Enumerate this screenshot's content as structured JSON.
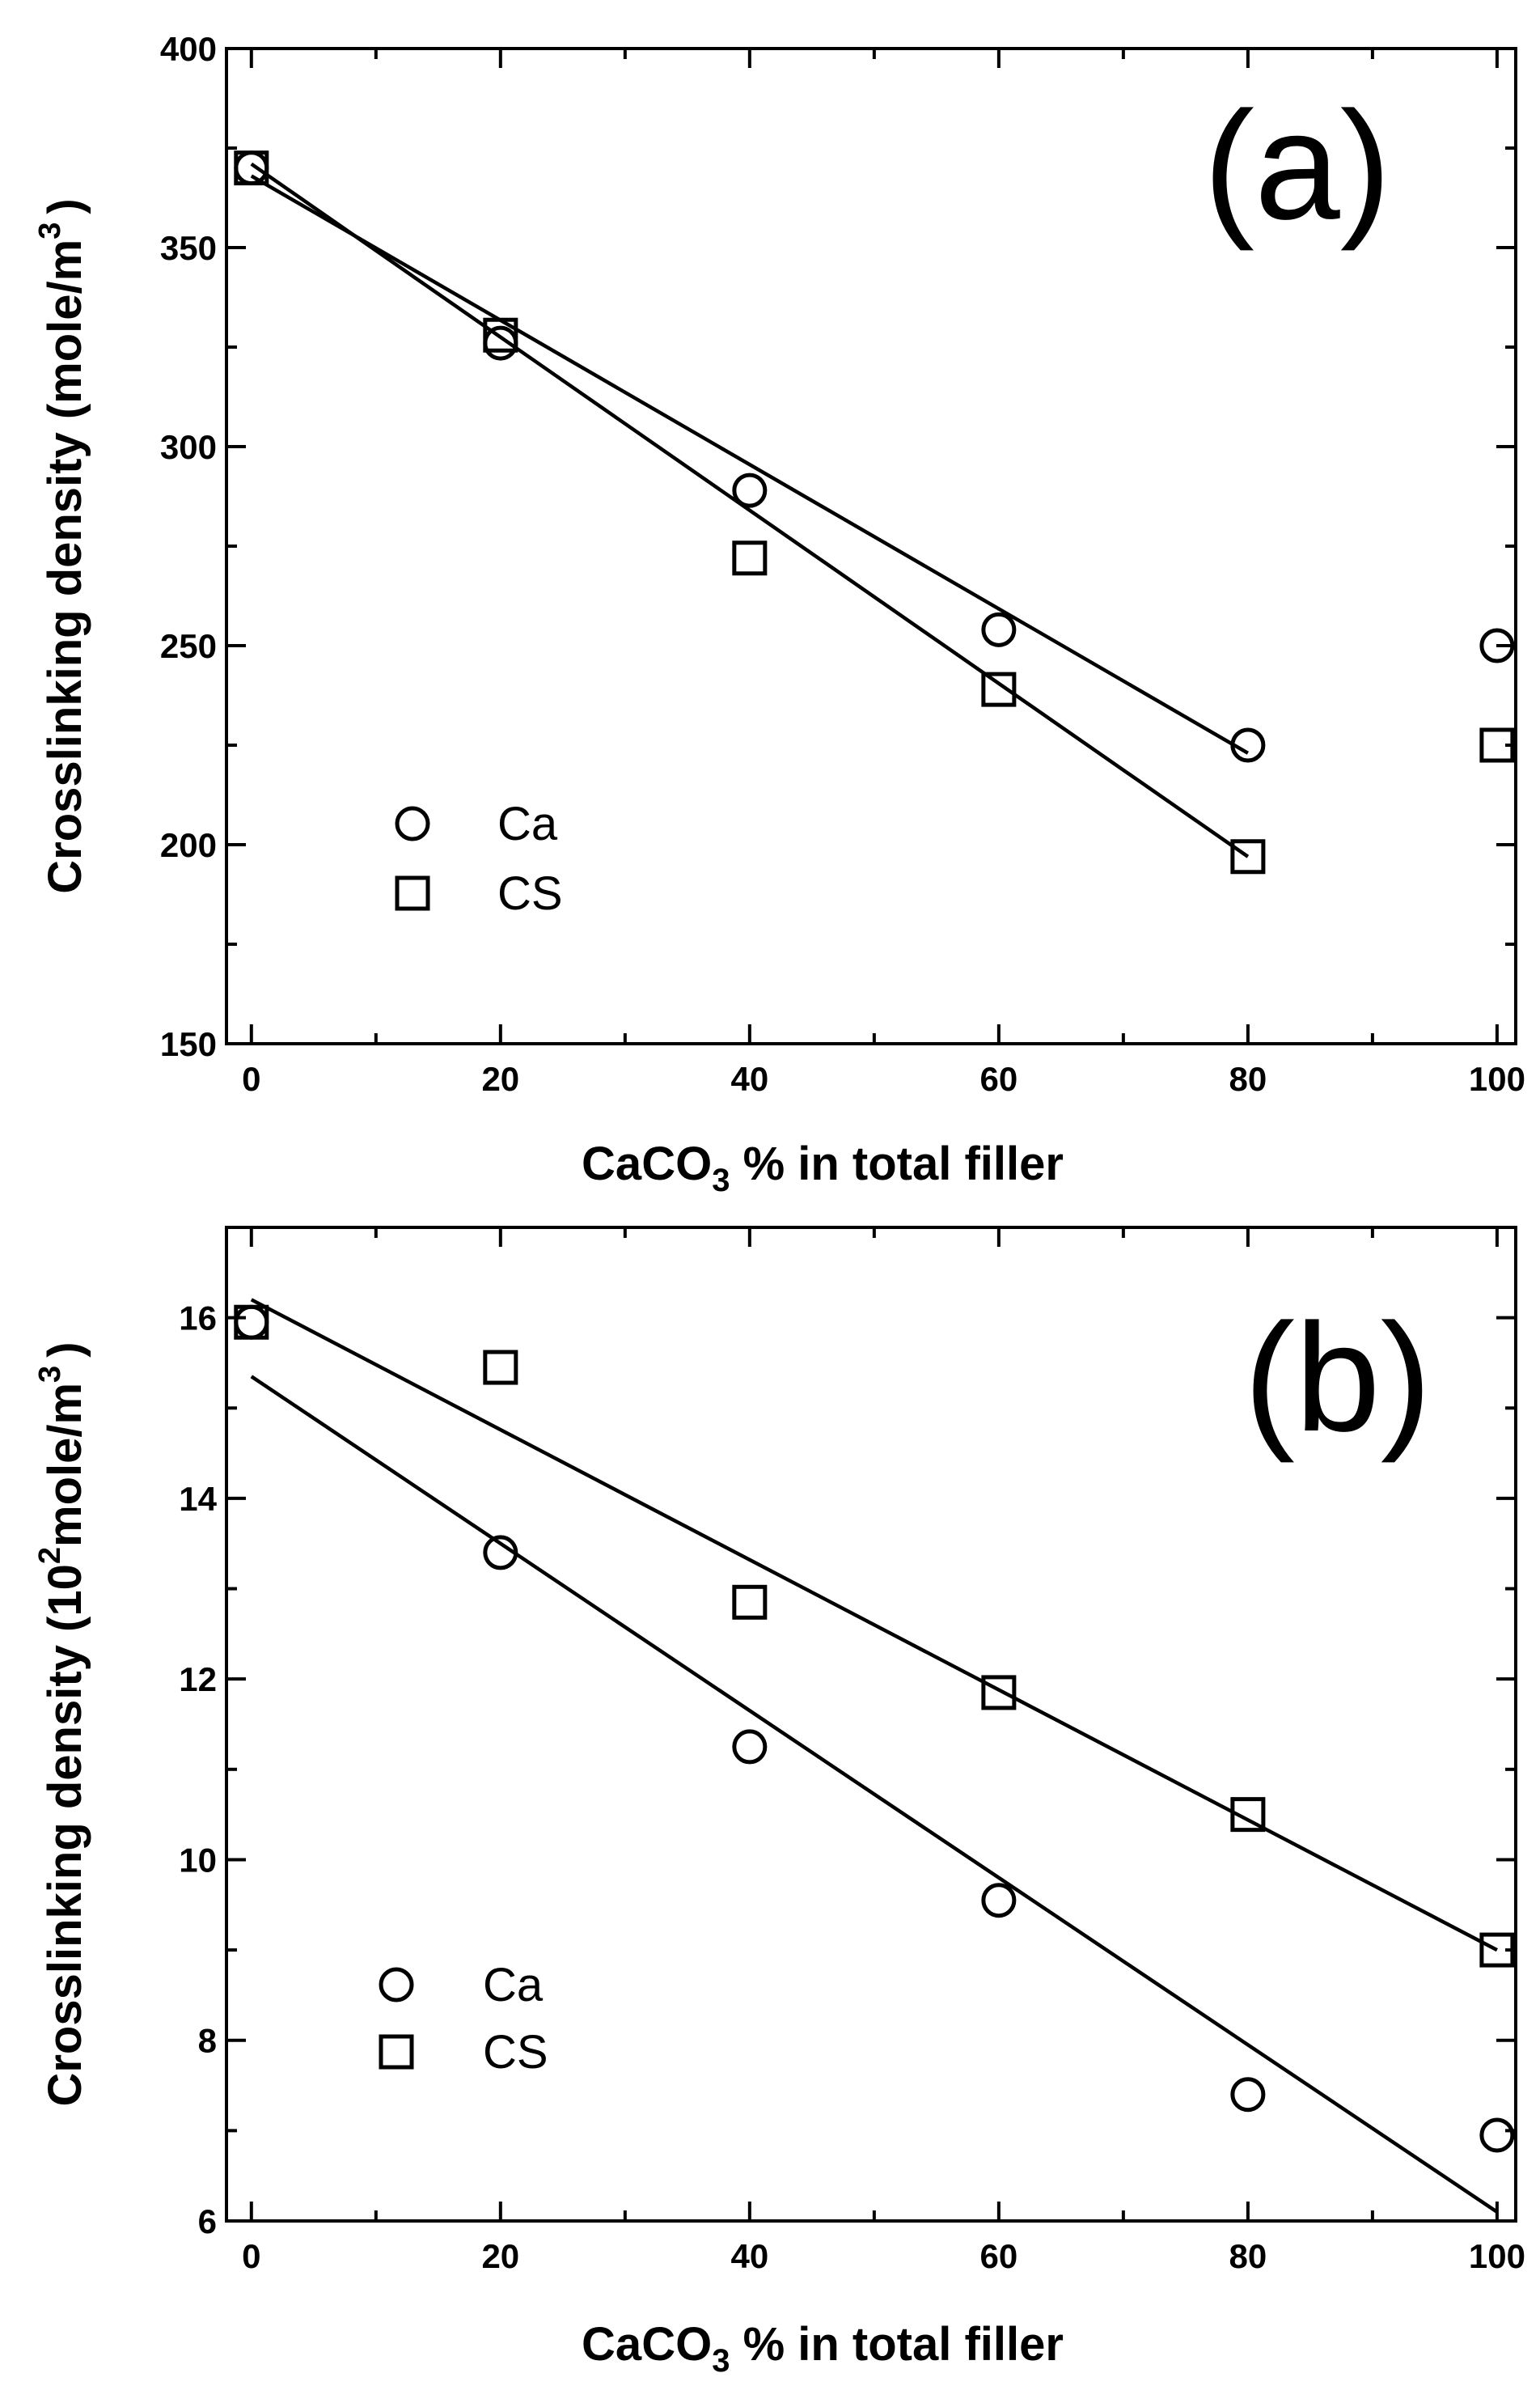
{
  "chart_data": [
    {
      "type": "scatter",
      "panel": "(a)",
      "xlabel": {
        "prefix": "CaCO",
        "subscript": "3",
        "suffix": " % in total filler"
      },
      "ylabel": {
        "main": "Crosslinking density (mole/m",
        "superscript": "3",
        "close": ")"
      },
      "xlim": [
        -2,
        101.5
      ],
      "ylim": [
        150,
        400
      ],
      "x_ticks": [
        0,
        20,
        40,
        60,
        80,
        100
      ],
      "y_ticks": [
        150,
        200,
        250,
        300,
        350,
        400
      ],
      "legend_position": "lower-left",
      "series": [
        {
          "name": "Ca",
          "marker": "circle",
          "x": [
            0,
            20,
            40,
            60,
            80,
            100
          ],
          "y": [
            370,
            326,
            289,
            254,
            225,
            250
          ],
          "fit": {
            "x": [
              0,
              80
            ],
            "y": [
              368,
              223
            ]
          }
        },
        {
          "name": "CS",
          "marker": "square",
          "x": [
            0,
            20,
            40,
            60,
            80,
            100
          ],
          "y": [
            370,
            328,
            272,
            239,
            197,
            225
          ],
          "fit": {
            "x": [
              0,
              80
            ],
            "y": [
              371,
              197
            ]
          }
        }
      ]
    },
    {
      "type": "scatter",
      "panel": "(b)",
      "xlabel": {
        "prefix": "CaCO",
        "subscript": "3",
        "suffix": " % in total filler"
      },
      "ylabel": {
        "main": "Crosslinking density (10",
        "superscript": "2",
        "after": "mole/m",
        "superscript2": "3",
        "close": ")"
      },
      "xlim": [
        -2,
        101.5
      ],
      "ylim": [
        6,
        17
      ],
      "x_ticks": [
        0,
        20,
        40,
        60,
        80,
        100
      ],
      "y_ticks": [
        6,
        8,
        10,
        12,
        14,
        16
      ],
      "legend_position": "lower-left",
      "series": [
        {
          "name": "Ca",
          "marker": "circle",
          "x": [
            0,
            20,
            40,
            60,
            80,
            100
          ],
          "y": [
            15.95,
            13.4,
            11.25,
            9.55,
            7.4,
            6.95
          ],
          "fit": {
            "x": [
              0,
              100
            ],
            "y": [
              15.35,
              6.1
            ]
          }
        },
        {
          "name": "CS",
          "marker": "square",
          "x": [
            0,
            20,
            40,
            60,
            80,
            100
          ],
          "y": [
            15.95,
            15.45,
            12.85,
            11.85,
            10.5,
            9.0
          ],
          "fit": {
            "x": [
              0,
              100
            ],
            "y": [
              16.2,
              9.0
            ]
          }
        }
      ]
    }
  ]
}
